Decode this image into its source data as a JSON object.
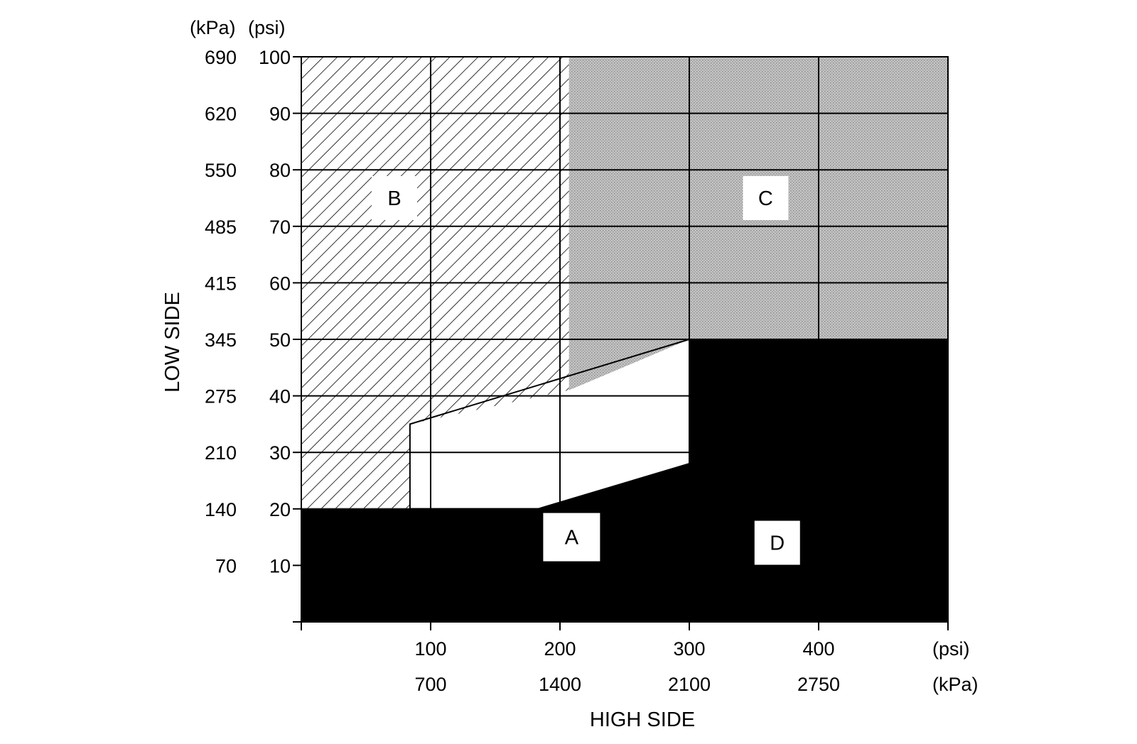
{
  "chart_data": {
    "type": "area",
    "title": "",
    "xlabel": "HIGH SIDE",
    "ylabel": "LOW SIDE",
    "x_units": {
      "primary": "(psi)",
      "secondary": "(kPa)"
    },
    "y_units": {
      "secondary": "(kPa)",
      "primary": "(psi)"
    },
    "xlim": [
      0,
      500
    ],
    "ylim": [
      0,
      100
    ],
    "x_ticks": [
      {
        "psi": 100,
        "psi_label": "100",
        "kpa_label": "700"
      },
      {
        "psi": 200,
        "psi_label": "200",
        "kpa_label": "1400"
      },
      {
        "psi": 300,
        "psi_label": "300",
        "kpa_label": "2100"
      },
      {
        "psi": 400,
        "psi_label": "400",
        "kpa_label": "2750"
      }
    ],
    "y_ticks": [
      {
        "psi": 10,
        "psi_label": "10",
        "kpa_label": "70"
      },
      {
        "psi": 20,
        "psi_label": "20",
        "kpa_label": "140"
      },
      {
        "psi": 30,
        "psi_label": "30",
        "kpa_label": "210"
      },
      {
        "psi": 40,
        "psi_label": "40",
        "kpa_label": "275"
      },
      {
        "psi": 50,
        "psi_label": "50",
        "kpa_label": "345"
      },
      {
        "psi": 60,
        "psi_label": "60",
        "kpa_label": "415"
      },
      {
        "psi": 70,
        "psi_label": "70",
        "kpa_label": "485"
      },
      {
        "psi": 80,
        "psi_label": "80",
        "kpa_label": "550"
      },
      {
        "psi": 90,
        "psi_label": "90",
        "kpa_label": "620"
      },
      {
        "psi": 100,
        "psi_label": "100",
        "kpa_label": "690"
      }
    ],
    "grid": true,
    "regions": [
      {
        "name": "A",
        "fill": "none",
        "polygon": [
          [
            84,
            20
          ],
          [
            183,
            20
          ],
          [
            300,
            28
          ],
          [
            300,
            50
          ],
          [
            84,
            35
          ]
        ],
        "label_at": [
          209,
          15
        ]
      },
      {
        "name": "B",
        "fill": "hatched",
        "polygon": [
          [
            0,
            20
          ],
          [
            84,
            20
          ],
          [
            84,
            35
          ],
          [
            207,
            41
          ],
          [
            207,
            100
          ],
          [
            0,
            100
          ]
        ],
        "label_at": [
          72,
          75
        ]
      },
      {
        "name": "C",
        "fill": "stippled",
        "polygon": [
          [
            207,
            100
          ],
          [
            500,
            100
          ],
          [
            500,
            50
          ],
          [
            300,
            50
          ],
          [
            207,
            41
          ]
        ],
        "label_at": [
          359,
          75
        ]
      },
      {
        "name": "D",
        "fill": "solid",
        "polygon": [
          [
            0,
            0
          ],
          [
            500,
            0
          ],
          [
            500,
            50
          ],
          [
            300,
            50
          ],
          [
            300,
            28
          ],
          [
            183,
            20
          ],
          [
            0,
            20
          ]
        ],
        "label_at": [
          368,
          14
        ]
      }
    ],
    "colors": {
      "solid_fill": "#000000",
      "stipple_base": "#bdbdbd",
      "stipple_dot": "#8c8c8c",
      "line": "#000000",
      "background": "#ffffff"
    }
  }
}
